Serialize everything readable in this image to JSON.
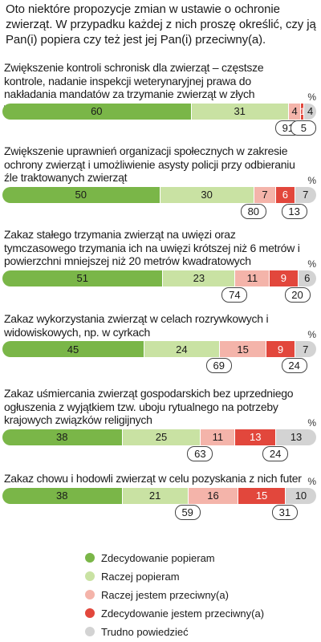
{
  "intro": "Oto niektóre propozycje zmian w ustawie o ochronie zwierząt. W przypadku każdej z nich proszę określić, czy ją Pan(i) popiera czy też jest jej Pan(i) przeciwny(a).",
  "colors": [
    "#7ab648",
    "#c9e2a3",
    "#f4b4aa",
    "#e2473c",
    "#d3d3d3"
  ],
  "chart_data": {
    "type": "bar",
    "orientation": "horizontal-stacked-100",
    "unit": "%",
    "legend": [
      "Zdecydowanie popieram",
      "Raczej popieram",
      "Raczej jestem przeciwny(a)",
      "Zdecydowanie jestem przeciwny(a)",
      "Trudno powiedzieć"
    ],
    "items": [
      {
        "title": "Zwiększenie kontroli schronisk dla zwierząt – częstsze kontrole, nadanie inspekcji weterynaryjnej prawa do nakładania mandatów za trzymanie zwierząt w złych warunkach",
        "values": [
          60,
          31,
          4,
          1,
          4
        ],
        "support_total": 91,
        "oppose_total": 5
      },
      {
        "title": "Zwiększenie uprawnień organizacji społecznych w zakresie ochrony zwierząt i umożliwienie asysty policji przy odbieraniu źle traktowanych zwierząt",
        "values": [
          50,
          30,
          7,
          6,
          7
        ],
        "support_total": 80,
        "oppose_total": 13
      },
      {
        "title": "Zakaz stałego trzymania zwierząt na uwięzi oraz tymczasowego trzymania ich na uwięzi krótszej niż 6 metrów i powierzchni mniejszej niż 20 metrów kwadratowych",
        "values": [
          51,
          23,
          11,
          9,
          6
        ],
        "support_total": 74,
        "oppose_total": 20
      },
      {
        "title": "Zakaz wykorzystania zwierząt w celach rozrywkowych i widowiskowych, np. w cyrkach",
        "values": [
          45,
          24,
          15,
          9,
          7
        ],
        "support_total": 69,
        "oppose_total": 24
      },
      {
        "title": "Zakaz uśmiercania zwierząt gospodarskich bez uprzedniego ogłuszenia z wyjątkiem tzw. uboju rytualnego na potrzeby krajowych związków religijnych",
        "values": [
          38,
          25,
          11,
          13,
          13
        ],
        "support_total": 63,
        "oppose_total": 24
      },
      {
        "title": "Zakaz chowu i hodowli zwierząt w celu pozyskania z nich futer",
        "values": [
          38,
          21,
          16,
          15,
          10
        ],
        "support_total": 59,
        "oppose_total": 31
      }
    ]
  }
}
